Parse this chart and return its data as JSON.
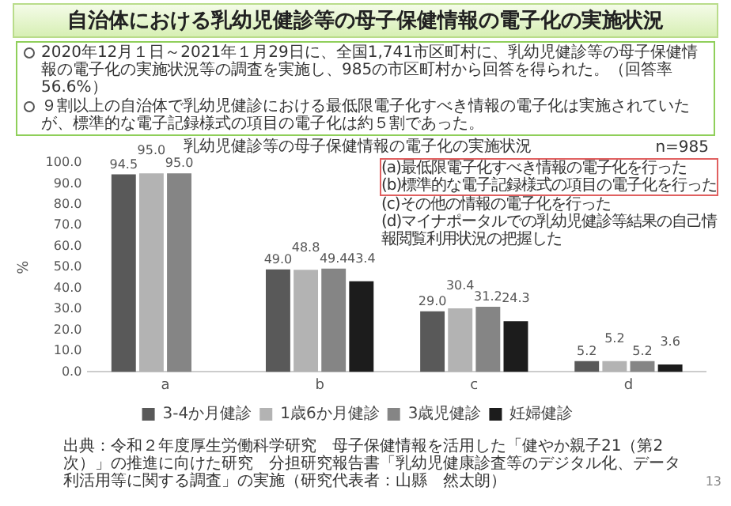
{
  "chart_data": {
    "type": "bar",
    "title": "自治体における乳幼児健診等の母子保健情報の電子化の実施状況",
    "subtitle": "乳幼児健診等の母子保健情報の電子化の実施状況",
    "ylabel": "%",
    "categories": [
      "a",
      "b",
      "c",
      "d"
    ],
    "series": [
      {
        "name": "3-4か月健診",
        "color": "#595959",
        "values": [
          94.5,
          49.0,
          29.0,
          5.2
        ],
        "value_labels": [
          "94.5",
          "49.0",
          "29.0",
          "5.2"
        ]
      },
      {
        "name": "1歳6か月健診",
        "color": "#b3b3b3",
        "values": [
          95.0,
          48.8,
          30.4,
          5.2
        ],
        "value_labels": [
          "95.0",
          "48.8",
          "30.4",
          "5.2"
        ]
      },
      {
        "name": "3歳児健診",
        "color": "#858585",
        "values": [
          95.0,
          49.4,
          31.2,
          5.2
        ],
        "value_labels": [
          "95.0",
          "49.4",
          "31.2",
          "5.2"
        ]
      },
      {
        "name": "妊婦健診",
        "color": "#1c1c1c",
        "values": [
          null,
          43.4,
          24.3,
          3.6
        ],
        "value_labels": [
          null,
          "43.4",
          "24.3",
          "3.6"
        ]
      }
    ],
    "ylim": [
      0,
      100
    ],
    "yticks": [
      {
        "value": 0,
        "label": "0.0"
      },
      {
        "value": 10,
        "label": "10.0"
      },
      {
        "value": 20,
        "label": "20.0"
      },
      {
        "value": 30,
        "label": "30.0"
      },
      {
        "value": 40,
        "label": "40.0"
      },
      {
        "value": 50,
        "label": "50.0"
      },
      {
        "value": 60,
        "label": "60.0"
      },
      {
        "value": 70,
        "label": "70.0"
      },
      {
        "value": 80,
        "label": "80.0"
      },
      {
        "value": 90,
        "label": "90.0"
      },
      {
        "value": 100,
        "label": "100.0"
      }
    ],
    "grid": false,
    "legend": "bottom",
    "annotations": [
      "2020年12月１日～2021年１月29日に、全国1,741市区町村に、乳幼児健診等の母子保健情報の電子化の実施状況等の調査を実施し、985の市区町村から回答を得られた。（回答率56.6%）",
      "９割以上の自治体で乳幼児健診における最低限電子化すべき情報の電子化は実施されていたが、標準的な電子記録様式の項目の電子化は約５割であった。",
      "n=985",
      "(a)最低限電子化すべき情報の電子化を行った",
      "(b)標準的な電子記録様式の項目の電子化を行った",
      "(c)その他の情報の電子化を行った",
      "(d)マイナポータルでの乳幼児健診等結果の自己情報閲覧利用状況の把握した",
      "出典：令和２年度厚生労働科学研究　母子保健情報を活用した「健やか親子21（第2次）」の推進に向けた研究　分担研究報告書「乳幼児健康診査等のデジタル化、データ利活用等に関する調査」の実施（研究代表者：山縣　然太朗）",
      "13"
    ]
  }
}
